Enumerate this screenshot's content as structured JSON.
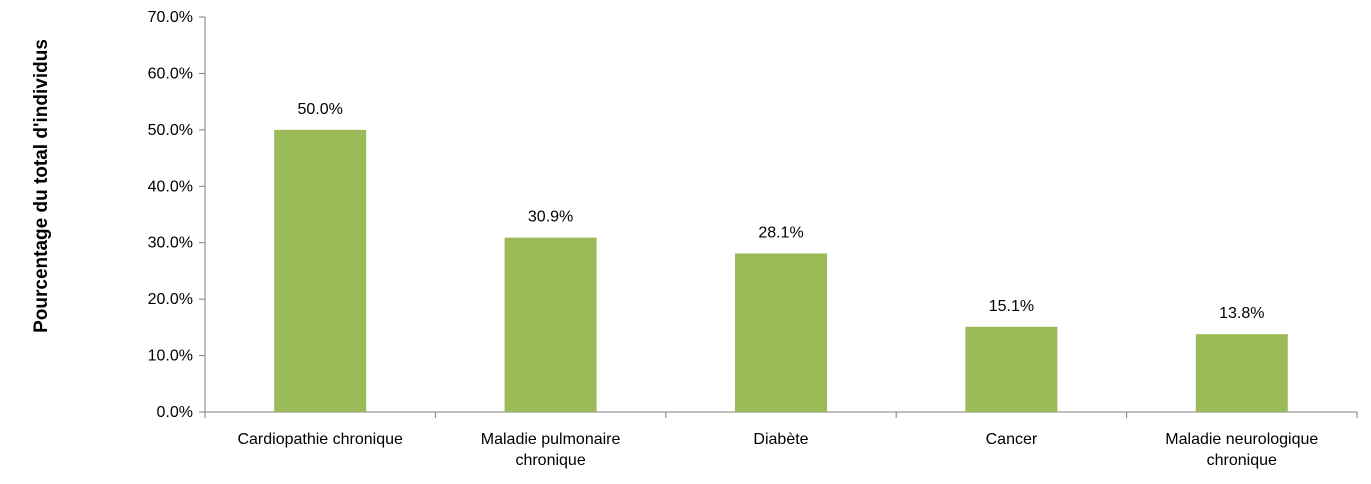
{
  "chart_data": {
    "type": "bar",
    "ylabel": "Pourcentage du total d'individus",
    "categories": [
      [
        "Cardiopathie chronique"
      ],
      [
        "Maladie pulmonaire",
        "chronique"
      ],
      [
        "Diabète"
      ],
      [
        "Cancer"
      ],
      [
        "Maladie neurologique",
        "chronique"
      ]
    ],
    "values": [
      50.0,
      30.9,
      28.1,
      15.1,
      13.8
    ],
    "data_labels": [
      "50.0%",
      "30.9%",
      "28.1%",
      "15.1%",
      "13.8%"
    ],
    "ylim": [
      0,
      70
    ],
    "yticks": [
      0,
      10,
      20,
      30,
      40,
      50,
      60,
      70
    ],
    "ytick_labels": [
      "0.0%",
      "10.0%",
      "20.0%",
      "30.0%",
      "40.0%",
      "50.0%",
      "60.0%",
      "70.0%"
    ],
    "grid": false,
    "legend": "none",
    "bar_color": "#9bbb59",
    "axis_color": "#7f7f7f"
  }
}
